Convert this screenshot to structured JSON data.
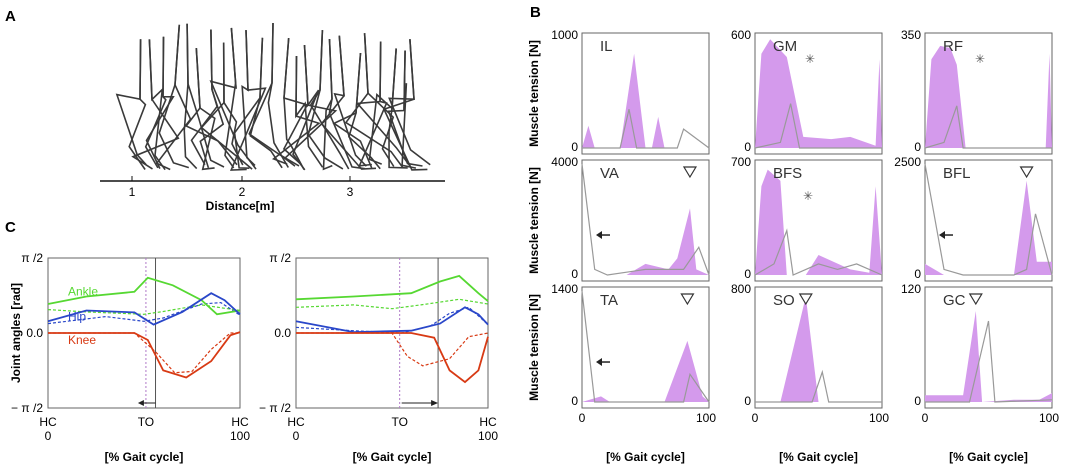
{
  "panel_a": {
    "letter": "A",
    "xlabel": "Distance[m]",
    "ticks": [
      "1",
      "2",
      "3"
    ],
    "tick_values": [
      1,
      2,
      3
    ]
  },
  "panel_b": {
    "letter": "B",
    "ylabel": "Muscle tension [N]",
    "xlabel": "[% Gait cycle]",
    "x_ticks": [
      "0",
      "100"
    ],
    "colors": {
      "fill": "#d49aec",
      "line": "#999999"
    },
    "muscles": [
      {
        "name": "IL",
        "ymax": "1000",
        "ymax_value": 1000,
        "marker": "",
        "fill": [
          [
            0,
            0
          ],
          [
            5,
            20
          ],
          [
            10,
            0
          ],
          [
            30,
            0
          ],
          [
            41,
            85
          ],
          [
            50,
            0
          ],
          [
            55,
            0
          ],
          [
            60,
            28
          ],
          [
            65,
            0
          ],
          [
            100,
            0
          ]
        ],
        "line": [
          [
            0,
            0
          ],
          [
            30,
            0
          ],
          [
            37,
            35
          ],
          [
            43,
            0
          ],
          [
            75,
            0
          ],
          [
            80,
            17
          ],
          [
            100,
            0
          ]
        ]
      },
      {
        "name": "GM",
        "ymax": "600",
        "ymax_value": 600,
        "marker": "asterisk",
        "fill": [
          [
            0,
            0
          ],
          [
            5,
            85
          ],
          [
            12,
            98
          ],
          [
            25,
            82
          ],
          [
            38,
            10
          ],
          [
            60,
            8
          ],
          [
            75,
            10
          ],
          [
            95,
            2
          ],
          [
            98,
            80
          ],
          [
            100,
            0
          ]
        ],
        "line": [
          [
            0,
            0
          ],
          [
            20,
            5
          ],
          [
            28,
            40
          ],
          [
            35,
            0
          ],
          [
            100,
            0
          ]
        ]
      },
      {
        "name": "RF",
        "ymax": "350",
        "ymax_value": 350,
        "marker": "asterisk",
        "fill": [
          [
            0,
            0
          ],
          [
            5,
            80
          ],
          [
            12,
            92
          ],
          [
            20,
            90
          ],
          [
            25,
            75
          ],
          [
            32,
            0
          ],
          [
            95,
            0
          ],
          [
            98,
            85
          ],
          [
            100,
            0
          ]
        ],
        "line": [
          [
            0,
            0
          ],
          [
            15,
            5
          ],
          [
            25,
            38
          ],
          [
            30,
            0
          ],
          [
            100,
            0
          ]
        ]
      },
      {
        "name": "VA",
        "ymax": "4000",
        "ymax_value": 4000,
        "marker": "triangle",
        "fill": [
          [
            0,
            0
          ],
          [
            35,
            0
          ],
          [
            50,
            10
          ],
          [
            68,
            5
          ],
          [
            75,
            15
          ],
          [
            85,
            60
          ],
          [
            90,
            5
          ],
          [
            100,
            0
          ]
        ],
        "line": [
          [
            0,
            100
          ],
          [
            10,
            5
          ],
          [
            20,
            0
          ],
          [
            50,
            5
          ],
          [
            80,
            5
          ],
          [
            92,
            25
          ],
          [
            100,
            0
          ]
        ],
        "arrow": true
      },
      {
        "name": "BFS",
        "ymax": "700",
        "ymax_value": 700,
        "marker": "asterisk",
        "fill": [
          [
            0,
            0
          ],
          [
            5,
            80
          ],
          [
            10,
            95
          ],
          [
            15,
            90
          ],
          [
            20,
            85
          ],
          [
            25,
            0
          ],
          [
            40,
            0
          ],
          [
            50,
            18
          ],
          [
            75,
            5
          ],
          [
            90,
            2
          ],
          [
            95,
            80
          ],
          [
            100,
            0
          ]
        ],
        "line": [
          [
            0,
            0
          ],
          [
            15,
            10
          ],
          [
            25,
            40
          ],
          [
            30,
            0
          ],
          [
            50,
            10
          ],
          [
            65,
            5
          ],
          [
            80,
            10
          ],
          [
            100,
            0
          ]
        ]
      },
      {
        "name": "BFL",
        "ymax": "2500",
        "ymax_value": 2500,
        "marker": "triangle",
        "fill": [
          [
            0,
            10
          ],
          [
            15,
            0
          ],
          [
            70,
            0
          ],
          [
            80,
            85
          ],
          [
            88,
            12
          ],
          [
            100,
            12
          ]
        ],
        "line": [
          [
            0,
            100
          ],
          [
            15,
            5
          ],
          [
            30,
            0
          ],
          [
            70,
            0
          ],
          [
            80,
            5
          ],
          [
            87,
            55
          ],
          [
            100,
            0
          ]
        ],
        "arrow": true
      },
      {
        "name": "TA",
        "ymax": "1400",
        "ymax_value": 1400,
        "marker": "triangle",
        "fill": [
          [
            0,
            0
          ],
          [
            15,
            5
          ],
          [
            22,
            0
          ],
          [
            65,
            0
          ],
          [
            83,
            55
          ],
          [
            95,
            5
          ],
          [
            100,
            0
          ]
        ],
        "line": [
          [
            0,
            100
          ],
          [
            10,
            0
          ],
          [
            80,
            0
          ],
          [
            85,
            25
          ],
          [
            100,
            0
          ]
        ],
        "arrow": true
      },
      {
        "name": "SO",
        "ymax": "800",
        "ymax_value": 800,
        "marker": "triangle",
        "fill": [
          [
            0,
            0
          ],
          [
            20,
            0
          ],
          [
            40,
            95
          ],
          [
            50,
            0
          ],
          [
            100,
            0
          ]
        ],
        "line": [
          [
            0,
            0
          ],
          [
            45,
            0
          ],
          [
            53,
            27
          ],
          [
            58,
            0
          ],
          [
            100,
            0
          ]
        ]
      },
      {
        "name": "GC",
        "ymax": "120",
        "ymax_value": 120,
        "marker": "triangle",
        "fill": [
          [
            0,
            6
          ],
          [
            30,
            6
          ],
          [
            40,
            82
          ],
          [
            45,
            0
          ],
          [
            70,
            2
          ],
          [
            90,
            2
          ],
          [
            100,
            8
          ]
        ],
        "line": [
          [
            0,
            0
          ],
          [
            35,
            0
          ],
          [
            50,
            73
          ],
          [
            55,
            0
          ],
          [
            100,
            2
          ]
        ]
      }
    ]
  },
  "panel_c": {
    "letter": "C",
    "ylabel": "Joint angles [rad]",
    "xlabel": "[% Gait cycle]",
    "y_ticks": [
      "π /2",
      "0.0",
      "− π /2"
    ],
    "y_tick_values": [
      1.5708,
      0,
      -1.5708
    ],
    "x_ticks_top": [
      "HC",
      "TO",
      "HC"
    ],
    "x_ticks_bottom": [
      "0",
      "100"
    ],
    "legend": [
      "Ankle",
      "Hip",
      "Knee"
    ],
    "colors": {
      "ankle": "#56d832",
      "hip": "#2a47c9",
      "knee": "#d83a14"
    },
    "plots": [
      {
        "to_pct": 51,
        "to_sim_pct": 56,
        "ankle": [
          [
            0,
            0.62
          ],
          [
            20,
            0.78
          ],
          [
            45,
            0.88
          ],
          [
            52,
            1.18
          ],
          [
            65,
            1.02
          ],
          [
            80,
            0.7
          ],
          [
            88,
            0.4
          ],
          [
            100,
            0.48
          ]
        ],
        "ankle_dash": [
          [
            0,
            0.5
          ],
          [
            20,
            0.45
          ],
          [
            50,
            0.4
          ],
          [
            60,
            0.46
          ],
          [
            80,
            0.6
          ],
          [
            100,
            0.48
          ]
        ],
        "hip": [
          [
            0,
            0.25
          ],
          [
            20,
            0.48
          ],
          [
            45,
            0.44
          ],
          [
            55,
            0.18
          ],
          [
            70,
            0.45
          ],
          [
            85,
            0.85
          ],
          [
            92,
            0.7
          ],
          [
            100,
            0.4
          ]
        ],
        "hip_dash": [
          [
            0,
            0.2
          ],
          [
            30,
            0.35
          ],
          [
            50,
            0.25
          ],
          [
            60,
            0.32
          ],
          [
            80,
            0.62
          ],
          [
            90,
            0.65
          ],
          [
            100,
            0.38
          ]
        ],
        "knee": [
          [
            0,
            0.0
          ],
          [
            45,
            0.0
          ],
          [
            52,
            -0.15
          ],
          [
            60,
            -0.8
          ],
          [
            72,
            -0.95
          ],
          [
            85,
            -0.6
          ],
          [
            95,
            -0.05
          ],
          [
            100,
            0.02
          ]
        ],
        "knee_dash": [
          [
            0,
            0.0
          ],
          [
            45,
            0.0
          ],
          [
            56,
            -0.4
          ],
          [
            66,
            -0.85
          ],
          [
            75,
            -0.82
          ],
          [
            85,
            -0.35
          ],
          [
            95,
            0.0
          ],
          [
            100,
            0.0
          ]
        ]
      },
      {
        "to_pct": 54,
        "to_sim_pct": 74,
        "ankle": [
          [
            0,
            0.72
          ],
          [
            30,
            0.78
          ],
          [
            60,
            0.85
          ],
          [
            75,
            1.1
          ],
          [
            85,
            1.22
          ],
          [
            95,
            0.85
          ],
          [
            100,
            0.68
          ]
        ],
        "ankle_dash": [
          [
            0,
            0.55
          ],
          [
            30,
            0.6
          ],
          [
            50,
            0.52
          ],
          [
            65,
            0.6
          ],
          [
            85,
            0.72
          ],
          [
            100,
            0.62
          ]
        ],
        "hip": [
          [
            0,
            0.25
          ],
          [
            30,
            0.02
          ],
          [
            60,
            0.05
          ],
          [
            75,
            0.2
          ],
          [
            88,
            0.55
          ],
          [
            95,
            0.4
          ],
          [
            100,
            0.18
          ]
        ],
        "hip_dash": [
          [
            0,
            0.12
          ],
          [
            30,
            0.05
          ],
          [
            55,
            0.0
          ],
          [
            70,
            0.15
          ],
          [
            80,
            0.42
          ],
          [
            90,
            0.55
          ],
          [
            100,
            0.18
          ]
        ],
        "knee": [
          [
            0,
            0.0
          ],
          [
            60,
            0.0
          ],
          [
            72,
            -0.1
          ],
          [
            80,
            -0.8
          ],
          [
            88,
            -1.05
          ],
          [
            95,
            -0.8
          ],
          [
            100,
            -0.08
          ]
        ],
        "knee_dash": [
          [
            0,
            0.0
          ],
          [
            50,
            0.0
          ],
          [
            58,
            -0.5
          ],
          [
            66,
            -0.7
          ],
          [
            80,
            -0.55
          ],
          [
            90,
            -0.08
          ],
          [
            100,
            0.0
          ]
        ]
      }
    ]
  }
}
